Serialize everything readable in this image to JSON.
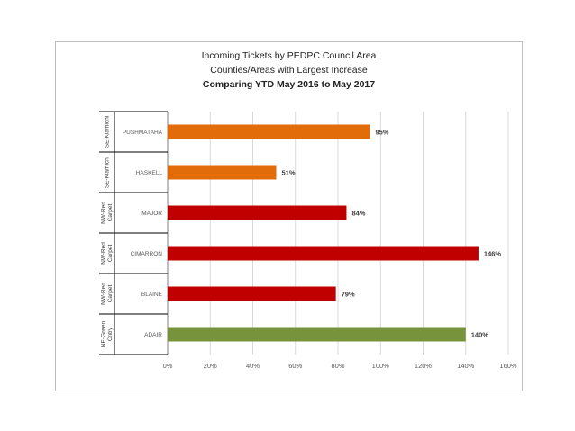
{
  "chart_data": {
    "type": "bar",
    "orientation": "horizontal",
    "title_lines": [
      "Incoming Tickets by PEDPC Council Area",
      "Counties/Areas with Largest Increase",
      "Comparing YTD May 2016 to May 2017"
    ],
    "categories": [
      "PUSHMATAHA",
      "HASKELL",
      "MAJOR",
      "CIMARRON",
      "BLAINE",
      "ADAIR"
    ],
    "groups": [
      "SE-Kiamichi",
      "SE-Kiamichi",
      "NW-Red Carpet",
      "NW-Red Carpet",
      "NW-Red Carpet",
      "NE-Green Cntry"
    ],
    "values": [
      95,
      51,
      84,
      146,
      79,
      140
    ],
    "value_labels": [
      "95%",
      "51%",
      "84%",
      "146%",
      "79%",
      "140%"
    ],
    "bar_colors": [
      "#e36c0a",
      "#e36c0a",
      "#c00000",
      "#c00000",
      "#c00000",
      "#77933c"
    ],
    "xlim": [
      0,
      160
    ],
    "x_ticks": [
      "0%",
      "20%",
      "40%",
      "60%",
      "80%",
      "100%",
      "120%",
      "140%",
      "160%"
    ],
    "grid": "vertical",
    "legend": "none"
  }
}
